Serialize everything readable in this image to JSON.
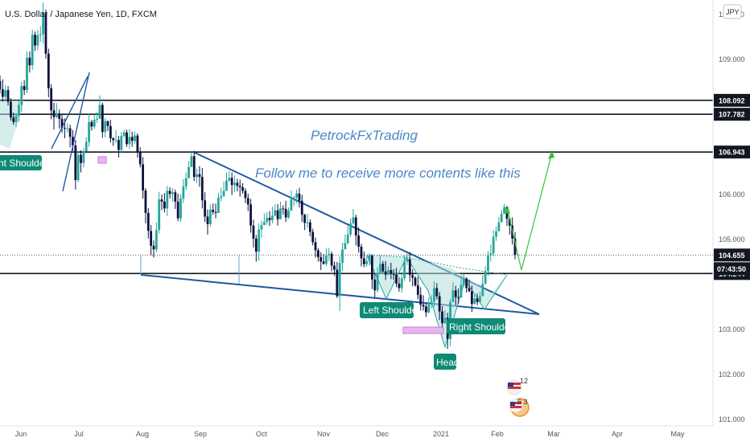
{
  "header": {
    "symbol_title": "U.S. Dollar / Japanese Yen, 1D, FXCM",
    "currency_button": "JPY"
  },
  "annotations": {
    "brand": "PetrockFxTrading",
    "tagline": "Follow me to receive more contents like this",
    "labels": {
      "left_partial": "nt Shoulder",
      "left_shoulder": "Left Shoulder",
      "head": "Head",
      "right_shoulder": "Right Shoulder"
    },
    "event_badge_1": "12",
    "event_badge_2": "6 3"
  },
  "colors": {
    "up": "#26a69a",
    "down": "#0d1240",
    "trendline": "#1e5aa0",
    "projection": "#36c336",
    "pattern_fill": "#b2dfdb",
    "label_bg": "#0e8a75",
    "level_line": "#131722"
  },
  "chart_data": {
    "type": "candlestick",
    "title": "U.S. Dollar / Japanese Yen, 1D, FXCM",
    "y_axis": {
      "ticks": [
        "110.000",
        "109.000",
        "106.000",
        "105.000",
        "103.000",
        "102.000",
        "101.000"
      ],
      "ylim": [
        101.0,
        110.2
      ]
    },
    "x_axis": {
      "ticks": [
        "Jun",
        "Jul",
        "Aug",
        "Sep",
        "Oct",
        "Nov",
        "Dec",
        "2021",
        "Feb",
        "Mar",
        "Apr",
        "May"
      ]
    },
    "horizontal_levels": [
      {
        "price": "108.092",
        "value": 108.092,
        "kind": "level"
      },
      {
        "price": "107.782",
        "value": 107.782,
        "kind": "level"
      },
      {
        "price": "106.943",
        "value": 106.943,
        "kind": "level"
      },
      {
        "price": "104.655",
        "value": 104.655,
        "kind": "last-price"
      },
      {
        "price": "104.244",
        "value": 104.244,
        "kind": "level"
      }
    ],
    "countdown": "07:43:50",
    "projection_target": 106.943,
    "candles": [
      [
        108.52,
        108.34,
        108.64,
        108.24
      ],
      [
        108.34,
        108.17,
        108.56,
        108.06
      ],
      [
        108.17,
        108.32,
        108.42,
        108.07
      ],
      [
        108.32,
        108.06,
        108.41,
        107.98
      ],
      [
        108.06,
        107.71,
        108.14,
        107.64
      ],
      [
        107.71,
        107.61,
        107.82,
        107.55
      ],
      [
        107.61,
        107.75,
        107.81,
        107.5
      ],
      [
        107.75,
        107.99,
        108.07,
        107.61
      ],
      [
        107.99,
        108.41,
        108.5,
        107.83
      ],
      [
        108.41,
        108.32,
        108.54,
        108.21
      ],
      [
        108.32,
        109.04,
        109.18,
        108.25
      ],
      [
        109.04,
        108.87,
        109.18,
        108.71
      ],
      [
        108.87,
        109.55,
        109.66,
        108.77
      ],
      [
        109.55,
        109.31,
        109.62,
        109.19
      ],
      [
        109.31,
        109.54,
        109.65,
        109.21
      ],
      [
        109.54,
        109.56,
        109.74,
        109.39
      ],
      [
        109.56,
        110.04,
        110.27,
        109.36
      ],
      [
        110.04,
        109.13,
        110.11,
        109.02
      ],
      [
        109.13,
        108.36,
        109.24,
        108.16
      ],
      [
        108.36,
        107.87,
        108.45,
        107.67
      ],
      [
        107.87,
        107.72,
        108.04,
        107.44
      ],
      [
        107.72,
        107.8,
        108.03,
        107.7
      ],
      [
        107.8,
        107.68,
        107.89,
        107.46
      ],
      [
        107.68,
        107.48,
        107.77,
        107.37
      ],
      [
        107.48,
        107.47,
        107.69,
        107.25
      ],
      [
        107.47,
        107.47,
        107.59,
        107.38
      ],
      [
        107.47,
        107.28,
        107.55,
        107.05
      ],
      [
        107.28,
        107.09,
        107.43,
        106.97
      ],
      [
        107.09,
        106.32,
        107.21,
        106.11
      ],
      [
        106.32,
        106.88,
        106.95,
        106.27
      ],
      [
        106.88,
        106.7,
        106.98,
        106.49
      ],
      [
        106.7,
        106.96,
        107.03,
        106.6
      ],
      [
        106.96,
        107.17,
        107.27,
        107.06
      ],
      [
        107.17,
        107.61,
        107.8,
        107.06
      ],
      [
        107.61,
        107.51,
        107.66,
        107.42
      ],
      [
        107.51,
        107.66,
        107.78,
        107.46
      ],
      [
        107.66,
        107.68,
        107.83,
        107.59
      ],
      [
        107.68,
        107.99,
        108.2,
        107.91
      ],
      [
        107.99,
        107.39,
        108.04,
        107.26
      ],
      [
        107.39,
        107.63,
        107.7,
        107.27
      ],
      [
        107.63,
        107.52,
        107.64,
        107.41
      ],
      [
        107.52,
        107.25,
        107.66,
        107.15
      ],
      [
        107.25,
        107.21,
        107.27,
        107.08
      ],
      [
        107.21,
        107.21,
        107.43,
        107.14
      ],
      [
        107.21,
        106.99,
        107.3,
        106.82
      ],
      [
        106.99,
        107.3,
        107.39,
        106.93
      ],
      [
        107.3,
        107.38,
        107.44,
        107.27
      ],
      [
        107.38,
        107.12,
        107.44,
        107.06
      ],
      [
        107.12,
        107.28,
        107.45,
        107.02
      ],
      [
        107.28,
        107.19,
        107.4,
        107.06
      ],
      [
        107.19,
        107.31,
        107.4,
        107.13
      ],
      [
        107.31,
        106.93,
        107.36,
        106.82
      ],
      [
        106.93,
        106.67,
        107.05,
        106.6
      ],
      [
        106.67,
        106.09,
        106.83,
        105.91
      ],
      [
        106.09,
        105.59,
        106.14,
        105.36
      ],
      [
        105.59,
        105.19,
        105.7,
        105.02
      ],
      [
        105.19,
        104.86,
        105.32,
        104.65
      ],
      [
        104.86,
        104.78,
        104.98,
        104.6
      ],
      [
        104.78,
        105.21,
        105.38,
        104.72
      ],
      [
        105.21,
        105.89,
        106.06,
        105.13
      ],
      [
        105.89,
        105.84,
        106.0,
        105.65
      ],
      [
        105.84,
        105.69,
        106.03,
        105.6
      ],
      [
        105.69,
        106.08,
        106.19,
        105.52
      ],
      [
        106.08,
        106.01,
        106.16,
        105.91
      ],
      [
        106.01,
        106.05,
        106.14,
        105.84
      ],
      [
        106.05,
        105.84,
        106.11,
        105.68
      ],
      [
        105.84,
        105.47,
        106.02,
        105.41
      ],
      [
        105.47,
        105.91,
        106.01,
        105.39
      ],
      [
        105.91,
        106.18,
        106.34,
        105.81
      ],
      [
        106.18,
        106.36,
        106.49,
        106.1
      ],
      [
        106.36,
        106.61,
        106.74,
        106.46
      ],
      [
        106.61,
        106.85,
        106.94,
        106.66
      ],
      [
        106.85,
        106.39,
        106.97,
        106.3
      ],
      [
        106.39,
        106.45,
        106.57,
        106.25
      ],
      [
        106.45,
        106.39,
        106.63,
        106.17
      ],
      [
        106.39,
        105.87,
        106.59,
        105.69
      ],
      [
        105.87,
        105.51,
        106.05,
        105.39
      ],
      [
        105.51,
        105.34,
        105.67,
        105.11
      ],
      [
        105.34,
        105.66,
        105.78,
        105.28
      ],
      [
        105.66,
        105.61,
        105.8,
        105.55
      ],
      [
        105.61,
        105.59,
        105.8,
        105.47
      ],
      [
        105.59,
        105.93,
        106.04,
        105.8
      ],
      [
        105.93,
        105.96,
        106.15,
        105.85
      ],
      [
        105.96,
        106.08,
        106.29,
        105.95
      ],
      [
        106.08,
        106.31,
        106.49,
        106.12
      ],
      [
        106.31,
        106.37,
        106.52,
        106.28
      ],
      [
        106.37,
        106.21,
        106.49,
        105.99
      ],
      [
        106.21,
        106.26,
        106.42,
        106.05
      ],
      [
        106.26,
        106.19,
        106.35,
        106.07
      ],
      [
        106.19,
        106.16,
        106.33,
        105.95
      ],
      [
        106.16,
        106.08,
        106.25,
        106.02
      ],
      [
        106.08,
        105.92,
        106.14,
        105.81
      ],
      [
        105.92,
        105.78,
        106.02,
        105.63
      ],
      [
        105.78,
        105.31,
        105.9,
        105.15
      ],
      [
        105.31,
        105.02,
        105.44,
        104.82
      ],
      [
        105.02,
        104.73,
        105.1,
        104.51
      ],
      [
        104.73,
        105.22,
        105.36,
        104.53
      ],
      [
        105.22,
        105.32,
        105.42,
        105.04
      ],
      [
        105.32,
        105.39,
        105.58,
        105.32
      ],
      [
        105.39,
        105.48,
        105.61,
        105.33
      ],
      [
        105.48,
        105.43,
        105.63,
        105.3
      ],
      [
        105.43,
        105.53,
        105.73,
        105.36
      ],
      [
        105.53,
        105.65,
        105.78,
        105.51
      ],
      [
        105.65,
        105.45,
        105.79,
        105.31
      ],
      [
        105.45,
        105.69,
        105.84,
        105.48
      ],
      [
        105.69,
        105.68,
        105.76,
        105.55
      ],
      [
        105.68,
        105.49,
        105.86,
        105.39
      ],
      [
        105.49,
        105.64,
        105.71,
        105.46
      ],
      [
        105.64,
        105.89,
        106.09,
        105.7
      ],
      [
        105.89,
        105.93,
        105.97,
        105.74
      ],
      [
        105.93,
        106.02,
        106.11,
        105.8
      ],
      [
        106.02,
        105.86,
        106.15,
        105.71
      ],
      [
        105.86,
        105.55,
        105.99,
        105.39
      ],
      [
        105.55,
        105.37,
        105.57,
        105.21
      ],
      [
        105.37,
        105.38,
        105.57,
        105.26
      ],
      [
        105.38,
        105.17,
        105.45,
        105.07
      ],
      [
        105.17,
        104.94,
        105.24,
        104.87
      ],
      [
        104.94,
        104.76,
        105.04,
        104.6
      ],
      [
        104.76,
        104.61,
        104.81,
        104.51
      ],
      [
        104.61,
        104.51,
        104.72,
        104.32
      ],
      [
        104.51,
        104.46,
        104.68,
        104.44
      ],
      [
        104.46,
        104.65,
        104.8,
        104.41
      ],
      [
        104.65,
        104.68,
        104.81,
        104.52
      ],
      [
        104.68,
        104.42,
        104.73,
        104.29
      ],
      [
        104.42,
        104.33,
        104.51,
        104.19
      ],
      [
        104.33,
        103.74,
        104.5,
        103.7
      ],
      [
        103.74,
        104.48,
        104.63,
        103.41
      ],
      [
        104.48,
        104.78,
        104.93,
        104.3
      ],
      [
        104.78,
        104.92,
        105.11,
        104.85
      ],
      [
        104.92,
        105.11,
        105.33,
        104.89
      ],
      [
        105.11,
        105.36,
        105.47,
        105.06
      ],
      [
        105.36,
        105.49,
        105.68,
        105.33
      ],
      [
        105.49,
        105.09,
        105.55,
        104.87
      ],
      [
        105.09,
        104.84,
        105.27,
        104.71
      ],
      [
        104.84,
        104.58,
        104.9,
        104.4
      ],
      [
        104.58,
        104.45,
        104.73,
        104.38
      ],
      [
        104.45,
        104.52,
        104.64,
        104.39
      ],
      [
        104.52,
        104.64,
        104.69,
        104.42
      ],
      [
        104.64,
        104.11,
        104.67,
        103.9
      ],
      [
        104.11,
        103.87,
        104.24,
        103.7
      ],
      [
        103.87,
        104.25,
        104.38,
        103.82
      ],
      [
        104.25,
        104.46,
        104.63,
        104.28
      ],
      [
        104.46,
        104.29,
        104.52,
        104.26
      ],
      [
        104.29,
        104.22,
        104.52,
        104.1
      ],
      [
        104.22,
        104.32,
        104.4,
        104.2
      ],
      [
        104.32,
        104.23,
        104.48,
        104.12
      ],
      [
        104.23,
        104.22,
        104.34,
        104.1
      ],
      [
        104.22,
        104.02,
        104.37,
        103.94
      ],
      [
        104.02,
        103.92,
        104.17,
        103.84
      ],
      [
        103.92,
        104.14,
        104.25,
        103.82
      ],
      [
        104.14,
        104.51,
        104.65,
        104.08
      ],
      [
        104.51,
        104.56,
        104.68,
        104.43
      ],
      [
        104.56,
        104.21,
        104.72,
        104.06
      ],
      [
        104.21,
        104.15,
        104.34,
        103.96
      ],
      [
        104.15,
        103.98,
        104.18,
        103.95
      ],
      [
        103.98,
        103.77,
        104.17,
        103.67
      ],
      [
        103.77,
        103.55,
        103.94,
        103.42
      ],
      [
        103.55,
        103.51,
        103.76,
        103.42
      ],
      [
        103.51,
        103.38,
        103.59,
        103.28
      ],
      [
        103.38,
        103.56,
        103.71,
        103.36
      ],
      [
        103.56,
        103.62,
        103.76,
        103.47
      ],
      [
        103.62,
        103.92,
        104.07,
        103.5
      ],
      [
        103.92,
        103.74,
        104.03,
        103.67
      ],
      [
        103.74,
        103.4,
        103.83,
        103.21
      ],
      [
        103.4,
        103.14,
        103.52,
        103.02
      ],
      [
        103.14,
        103.26,
        103.43,
        103.12
      ],
      [
        103.26,
        102.79,
        103.37,
        102.57
      ],
      [
        102.79,
        103.61,
        103.68,
        102.63
      ],
      [
        103.61,
        103.87,
        104.04,
        103.67
      ],
      [
        103.87,
        103.72,
        103.97,
        103.54
      ],
      [
        103.72,
        103.71,
        103.91,
        103.57
      ],
      [
        103.71,
        103.99,
        104.19,
        103.86
      ],
      [
        103.99,
        104.13,
        104.24,
        103.95
      ],
      [
        104.13,
        103.92,
        104.16,
        103.82
      ],
      [
        103.92,
        103.85,
        104.11,
        103.83
      ],
      [
        103.85,
        103.57,
        103.98,
        103.39
      ],
      [
        103.57,
        103.69,
        103.78,
        103.55
      ],
      [
        103.69,
        103.61,
        103.8,
        103.54
      ],
      [
        103.61,
        103.74,
        103.84,
        103.61
      ],
      [
        103.74,
        104.02,
        104.21,
        103.96
      ],
      [
        104.02,
        104.3,
        104.4,
        104.0
      ],
      [
        104.3,
        104.65,
        104.74,
        104.19
      ],
      [
        104.65,
        104.69,
        104.89,
        104.51
      ],
      [
        104.69,
        105.06,
        105.21,
        104.63
      ],
      [
        105.06,
        105.18,
        105.29,
        104.97
      ],
      [
        105.18,
        105.38,
        105.5,
        105.23
      ],
      [
        105.38,
        105.57,
        105.66,
        105.44
      ],
      [
        105.57,
        105.72,
        105.79,
        105.66
      ],
      [
        105.72,
        105.46,
        105.74,
        105.3
      ],
      [
        105.46,
        105.31,
        105.49,
        105.11
      ],
      [
        105.31,
        105.02,
        105.49,
        104.89
      ],
      [
        105.02,
        104.66,
        105.16,
        104.56
      ]
    ]
  }
}
